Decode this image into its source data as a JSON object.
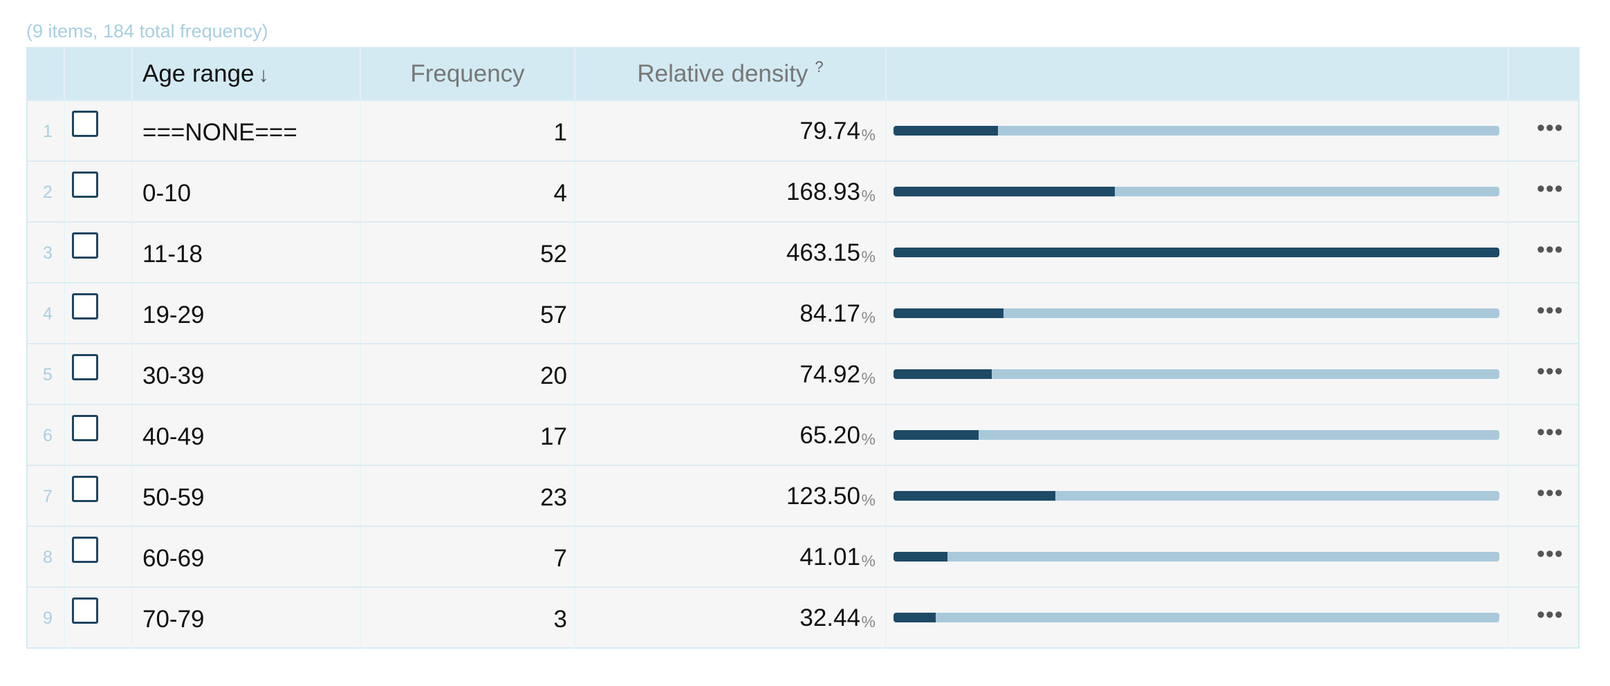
{
  "summary": "(9 items, 184 total frequency)",
  "headers": {
    "name": "Age range",
    "sort_icon": "↓",
    "frequency": "Frequency",
    "density": "Relative density",
    "density_help": "?"
  },
  "pct_symbol": "%",
  "menu_symbol": "•••",
  "colors": {
    "header_bg": "#d3eaf3",
    "bar_fill": "#1e4a66",
    "bar_track": "#a9c9db",
    "index_text": "#a9cfe0"
  },
  "rows": [
    {
      "index": "1",
      "name": "===NONE===",
      "frequency": "1",
      "density": "79.74",
      "density_value": 79.74,
      "checked": false
    },
    {
      "index": "2",
      "name": "0-10",
      "frequency": "4",
      "density": "168.93",
      "density_value": 168.93,
      "checked": false
    },
    {
      "index": "3",
      "name": "11-18",
      "frequency": "52",
      "density": "463.15",
      "density_value": 463.15,
      "checked": false
    },
    {
      "index": "4",
      "name": "19-29",
      "frequency": "57",
      "density": "84.17",
      "density_value": 84.17,
      "checked": false
    },
    {
      "index": "5",
      "name": "30-39",
      "frequency": "20",
      "density": "74.92",
      "density_value": 74.92,
      "checked": false
    },
    {
      "index": "6",
      "name": "40-49",
      "frequency": "17",
      "density": "65.20",
      "density_value": 65.2,
      "checked": false
    },
    {
      "index": "7",
      "name": "50-59",
      "frequency": "23",
      "density": "123.50",
      "density_value": 123.5,
      "checked": false
    },
    {
      "index": "8",
      "name": "60-69",
      "frequency": "7",
      "density": "41.01",
      "density_value": 41.01,
      "checked": false
    },
    {
      "index": "9",
      "name": "70-79",
      "frequency": "3",
      "density": "32.44",
      "density_value": 32.44,
      "checked": false
    }
  ]
}
